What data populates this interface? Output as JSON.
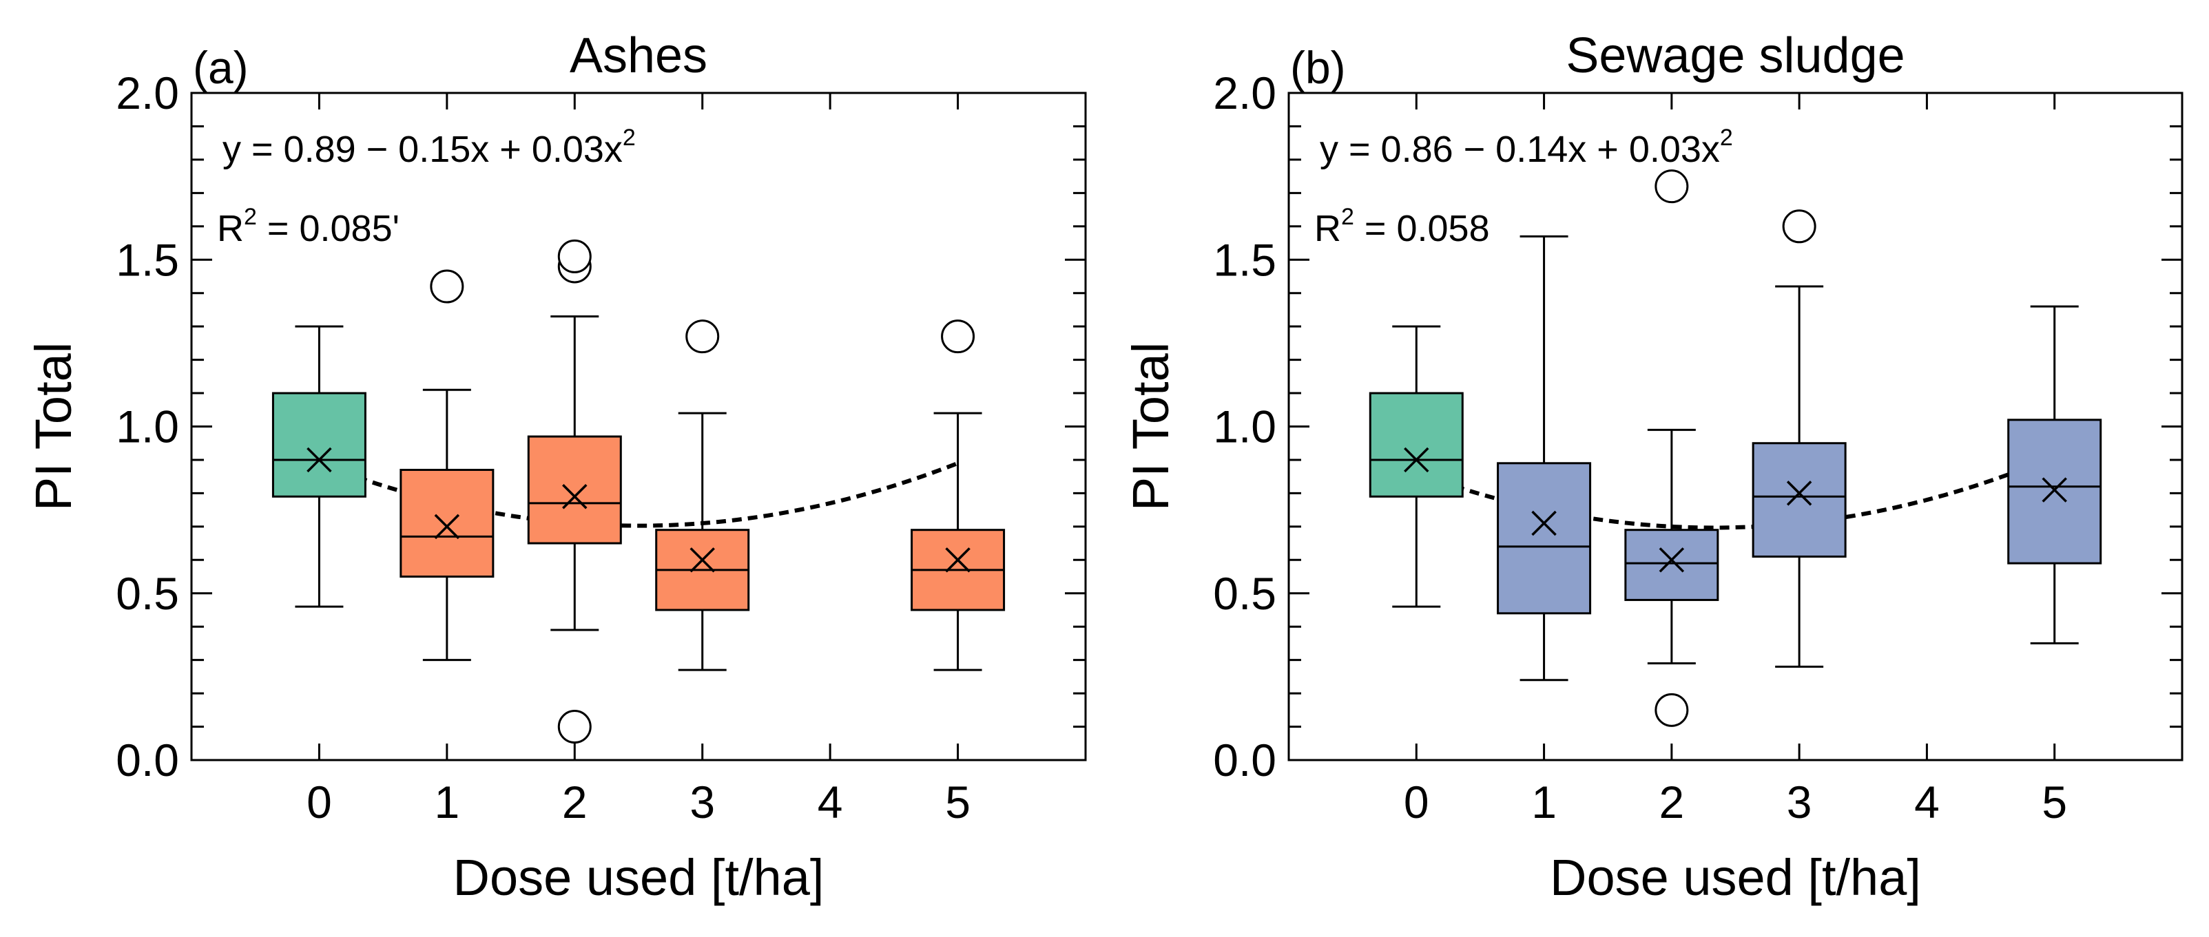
{
  "colors": {
    "control": "#66c2a5",
    "ashes": "#fc8d62",
    "sludge": "#8da0cb",
    "stroke": "#000000"
  },
  "chart_data": [
    {
      "type": "box",
      "panel_label": "(a)",
      "title": "Ashes",
      "xlabel": "Dose used [t/ha]",
      "ylabel": "PI Total",
      "ylim": [
        0,
        2.0
      ],
      "yticks": [
        "0.0",
        "0.5",
        "1.0",
        "1.5",
        "2.0"
      ],
      "xlim": [
        -1,
        6
      ],
      "xticks": [
        "0",
        "1",
        "2",
        "3",
        "4",
        "5"
      ],
      "equation": {
        "main": "y = 0.89 − 0.15x + 0.03x",
        "exp": "2"
      },
      "r2": {
        "prefix": "R",
        "exp": "2",
        "value": " = 0.085'"
      },
      "fit": {
        "a": 0.89,
        "b": -0.15,
        "c": 0.03,
        "x_range": [
          0.3,
          5
        ]
      },
      "boxes": [
        {
          "dose": 0,
          "group": "control",
          "whisker_low": 0.46,
          "q1": 0.79,
          "median": 0.9,
          "q3": 1.1,
          "whisker_high": 1.3,
          "mean": 0.9,
          "outliers": []
        },
        {
          "dose": 1,
          "group": "ashes",
          "whisker_low": 0.3,
          "q1": 0.55,
          "median": 0.67,
          "q3": 0.87,
          "whisker_high": 1.11,
          "mean": 0.7,
          "outliers": [
            1.42
          ]
        },
        {
          "dose": 2,
          "group": "ashes",
          "whisker_low": 0.39,
          "q1": 0.65,
          "median": 0.77,
          "q3": 0.97,
          "whisker_high": 1.33,
          "mean": 0.79,
          "outliers": [
            1.48,
            1.51,
            0.1
          ]
        },
        {
          "dose": 3,
          "group": "ashes",
          "whisker_low": 0.27,
          "q1": 0.45,
          "median": 0.57,
          "q3": 0.69,
          "whisker_high": 1.04,
          "mean": 0.6,
          "outliers": [
            1.27
          ]
        },
        {
          "dose": 5,
          "group": "ashes",
          "whisker_low": 0.27,
          "q1": 0.45,
          "median": 0.57,
          "q3": 0.69,
          "whisker_high": 1.04,
          "mean": 0.6,
          "outliers": [
            1.27
          ]
        }
      ]
    },
    {
      "type": "box",
      "panel_label": "(b)",
      "title": "Sewage sludge",
      "xlabel": "Dose used [t/ha]",
      "ylabel": "PI Total",
      "ylim": [
        0,
        2.0
      ],
      "yticks": [
        "0.0",
        "0.5",
        "1.0",
        "1.5",
        "2.0"
      ],
      "xlim": [
        -1,
        6
      ],
      "xticks": [
        "0",
        "1",
        "2",
        "3",
        "4",
        "5"
      ],
      "equation": {
        "main": "y = 0.86 − 0.14x + 0.03x",
        "exp": "2"
      },
      "r2": {
        "prefix": "R",
        "exp": "2",
        "value": " = 0.058"
      },
      "fit": {
        "a": 0.86,
        "b": -0.14,
        "c": 0.03,
        "x_range": [
          0.3,
          5
        ]
      },
      "boxes": [
        {
          "dose": 0,
          "group": "control",
          "whisker_low": 0.46,
          "q1": 0.79,
          "median": 0.9,
          "q3": 1.1,
          "whisker_high": 1.3,
          "mean": 0.9,
          "outliers": []
        },
        {
          "dose": 1,
          "group": "sludge",
          "whisker_low": 0.24,
          "q1": 0.44,
          "median": 0.64,
          "q3": 0.89,
          "whisker_high": 1.57,
          "mean": 0.71,
          "outliers": []
        },
        {
          "dose": 2,
          "group": "sludge",
          "whisker_low": 0.29,
          "q1": 0.48,
          "median": 0.59,
          "q3": 0.69,
          "whisker_high": 0.99,
          "mean": 0.6,
          "outliers": [
            1.72,
            0.15
          ]
        },
        {
          "dose": 3,
          "group": "sludge",
          "whisker_low": 0.28,
          "q1": 0.61,
          "median": 0.79,
          "q3": 0.95,
          "whisker_high": 1.42,
          "mean": 0.8,
          "outliers": [
            1.6
          ]
        },
        {
          "dose": 5,
          "group": "sludge",
          "whisker_low": 0.35,
          "q1": 0.59,
          "median": 0.82,
          "q3": 1.02,
          "whisker_high": 1.36,
          "mean": 0.81,
          "outliers": []
        }
      ]
    }
  ]
}
